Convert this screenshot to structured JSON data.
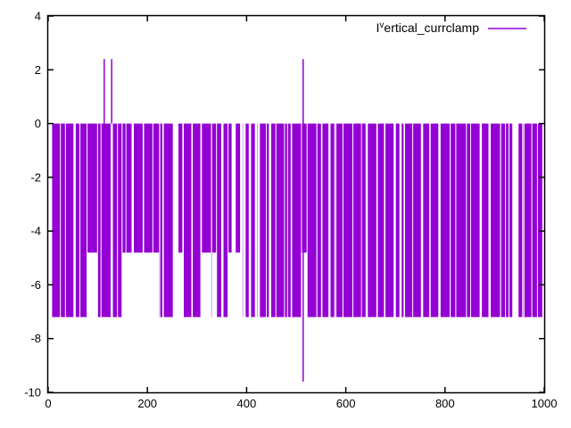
{
  "chart_data": {
    "type": "line",
    "title": "",
    "xlabel": "",
    "ylabel": "",
    "xlim": [
      0,
      1000
    ],
    "ylim": [
      -10,
      4
    ],
    "xticks": [
      0,
      200,
      400,
      600,
      800,
      1000
    ],
    "yticks": [
      4,
      2,
      0,
      -2,
      -4,
      -6,
      -8,
      -10
    ],
    "grid": false,
    "legend": {
      "position": "top-right",
      "entries": [
        {
          "label": "I^vertical_currclamp",
          "label_parts": {
            "base": "I",
            "superscript": "v",
            "rest": "ertical_currclamp"
          },
          "color": "#9400d3"
        }
      ]
    },
    "signal": {
      "description": "Dense high-frequency square-wave bursts: baseline 0, oscillating down to -7.2 (deep) or -4.8 (shallow), spanning x from about 8 to 997; isolated positive spikes to 2.4 near x=113 and x=128, and one full-height spike at x=514 from 2.4 down to -9.6",
      "base_level": 0,
      "deep_level": -7.2,
      "shallow_level": -4.8,
      "x_start": 8,
      "x_end": 997,
      "spikes": [
        {
          "x": 113,
          "top": 2.4,
          "bottom": 0
        },
        {
          "x": 128,
          "top": 2.4,
          "bottom": 0
        },
        {
          "x": 514,
          "top": 2.4,
          "bottom": -9.6
        }
      ],
      "seed": 20
    },
    "colors": {
      "line": "#9400d3",
      "axis": "#000000",
      "text": "#000000",
      "background": "#ffffff"
    }
  }
}
